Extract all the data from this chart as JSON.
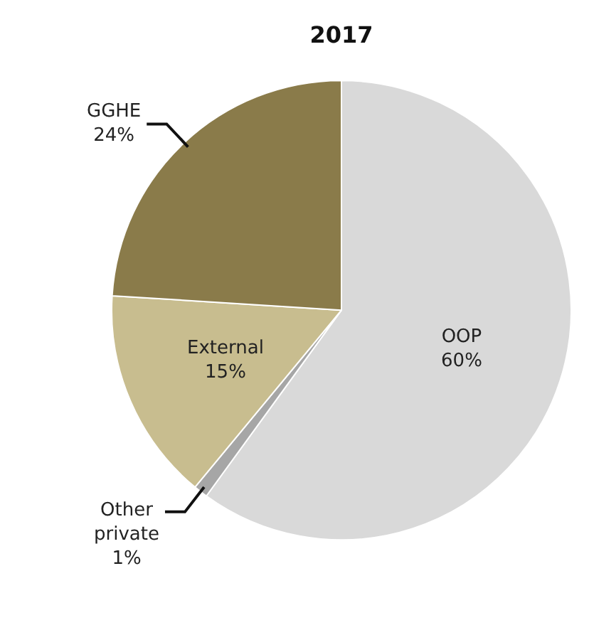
{
  "chart_data": {
    "type": "pie",
    "title": "2017",
    "categories": [
      "OOP",
      "Other private",
      "External",
      "GGHE"
    ],
    "values": [
      60,
      1,
      15,
      24
    ],
    "colors": [
      "#d9d9d9",
      "#a6a6a6",
      "#c8bd8f",
      "#8a7b4a"
    ],
    "value_labels": [
      "60%",
      "1%",
      "15%",
      "24%"
    ],
    "legend": false
  }
}
